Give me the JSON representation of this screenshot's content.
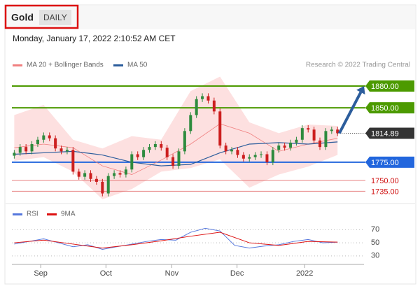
{
  "header": {
    "title": "Gold",
    "timeframe": "DAILY",
    "date": "Monday, January 17, 2022 2:10:52 AM CET",
    "credit": "Research © 2022 Trading Central"
  },
  "chart_data": [
    {
      "type": "candlestick",
      "legend": [
        {
          "name": "MA 20 + Bollinger Bands",
          "color": "#f08080"
        },
        {
          "name": "MA 50",
          "color": "#2c5d9c"
        }
      ],
      "xlim": [
        -0.4,
        59.5
      ],
      "xticks": [
        {
          "value": 4.5,
          "label": "Sep"
        },
        {
          "value": 15.6,
          "label": "Oct"
        },
        {
          "value": 26.8,
          "label": "Nov"
        },
        {
          "value": 37.9,
          "label": "Dec"
        },
        {
          "value": 49.4,
          "label": "2022"
        }
      ],
      "ylim": [
        1719,
        1907
      ],
      "candles": {
        "open": [
          1784,
          1788,
          1796,
          1790,
          1800,
          1806,
          1812,
          1808,
          1794,
          1790,
          1792,
          1762,
          1755,
          1760,
          1752,
          1748,
          1732,
          1756,
          1760,
          1758,
          1765,
          1786,
          1782,
          1792,
          1796,
          1800,
          1795,
          1782,
          1770,
          1790,
          1818,
          1840,
          1862,
          1866,
          1860,
          1845,
          1798,
          1790,
          1792,
          1785,
          1780,
          1782,
          1785,
          1786,
          1775,
          1792,
          1798,
          1795,
          1802,
          1806,
          1822,
          1820,
          1805,
          1796,
          1818,
          1820
        ],
        "high": [
          1792,
          1800,
          1800,
          1804,
          1810,
          1816,
          1816,
          1812,
          1798,
          1796,
          1796,
          1766,
          1764,
          1764,
          1756,
          1752,
          1760,
          1764,
          1764,
          1769,
          1790,
          1790,
          1796,
          1800,
          1804,
          1804,
          1799,
          1786,
          1794,
          1822,
          1844,
          1866,
          1870,
          1870,
          1864,
          1849,
          1802,
          1796,
          1796,
          1789,
          1786,
          1789,
          1790,
          1790,
          1796,
          1802,
          1802,
          1806,
          1810,
          1826,
          1826,
          1824,
          1809,
          1822,
          1824,
          1824
        ],
        "low": [
          1780,
          1784,
          1786,
          1786,
          1796,
          1802,
          1804,
          1790,
          1786,
          1786,
          1758,
          1751,
          1751,
          1748,
          1744,
          1728,
          1728,
          1752,
          1754,
          1754,
          1761,
          1778,
          1778,
          1788,
          1792,
          1791,
          1778,
          1766,
          1766,
          1786,
          1814,
          1836,
          1858,
          1856,
          1841,
          1794,
          1786,
          1786,
          1781,
          1776,
          1776,
          1778,
          1781,
          1771,
          1771,
          1788,
          1791,
          1791,
          1798,
          1802,
          1816,
          1801,
          1792,
          1792,
          1814,
          1811
        ],
        "close": [
          1788,
          1796,
          1790,
          1800,
          1806,
          1812,
          1808,
          1794,
          1790,
          1792,
          1762,
          1755,
          1760,
          1752,
          1748,
          1732,
          1756,
          1760,
          1758,
          1765,
          1786,
          1782,
          1792,
          1796,
          1800,
          1795,
          1782,
          1770,
          1790,
          1818,
          1840,
          1862,
          1866,
          1860,
          1845,
          1798,
          1790,
          1792,
          1785,
          1780,
          1782,
          1785,
          1786,
          1775,
          1792,
          1798,
          1795,
          1802,
          1806,
          1822,
          1820,
          1805,
          1796,
          1818,
          1820,
          1815
        ],
        "up_color": "#2e8b3e",
        "down_color": "#cc1f1f"
      },
      "bands": {
        "x": [
          0,
          5,
          10,
          15,
          20,
          25,
          30,
          35,
          40,
          45,
          50,
          55
        ],
        "upper": [
          1840,
          1854,
          1806,
          1794,
          1811,
          1806,
          1873,
          1893,
          1830,
          1815,
          1827,
          1825
        ],
        "lower": [
          1777,
          1782,
          1762,
          1724,
          1738,
          1762,
          1767,
          1779,
          1740,
          1758,
          1769,
          1785
        ],
        "color": "#fde0e0"
      },
      "series": [
        {
          "name": "MA 20",
          "color": "#f08080",
          "x": [
            0,
            5,
            10,
            15,
            20,
            25,
            30,
            35,
            40,
            45,
            50,
            55
          ],
          "values": [
            1795,
            1800,
            1795,
            1770,
            1758,
            1778,
            1800,
            1828,
            1815,
            1790,
            1800,
            1808
          ]
        },
        {
          "name": "MA 50",
          "color": "#2c5d9c",
          "x": [
            0,
            5,
            10,
            15,
            20,
            25,
            30,
            35,
            40,
            45,
            50,
            55
          ],
          "values": [
            1786,
            1788,
            1790,
            1785,
            1775,
            1770,
            1772,
            1788,
            1800,
            1802,
            1800,
            1803
          ]
        }
      ],
      "levels": [
        {
          "value": 1880,
          "label": "1880.00",
          "color": "#4c9a00",
          "style": "box"
        },
        {
          "value": 1850,
          "label": "1850.00",
          "color": "#4c9a00",
          "style": "box"
        },
        {
          "value": 1775,
          "label": "1775.00",
          "color": "#2266dd",
          "style": "box"
        },
        {
          "value": 1750,
          "label": "1750.00",
          "color": "#e06060",
          "style": "text"
        },
        {
          "value": 1735,
          "label": "1735.00",
          "color": "#e06060",
          "style": "text"
        }
      ],
      "last": 1814.89,
      "arrow": {
        "x": [
          55.3,
          59.5
        ],
        "y": [
          1814.89,
          1880
        ],
        "color": "#2c5d9c"
      }
    },
    {
      "type": "line",
      "ylim": [
        17,
        81
      ],
      "yticks": [
        70,
        50,
        30
      ],
      "series": [
        {
          "name": "RSI",
          "color": "#5577dd",
          "x": [
            0,
            2.5,
            5,
            7.5,
            10,
            12.5,
            15,
            17.5,
            20,
            22.5,
            25,
            27.5,
            30,
            32.5,
            35,
            37.5,
            40,
            42.5,
            45,
            47.5,
            50,
            52.5,
            55
          ],
          "values": [
            48,
            52,
            56,
            50,
            44,
            47,
            40,
            44,
            48,
            52,
            55,
            54,
            66,
            72,
            68,
            46,
            42,
            45,
            47,
            52,
            55,
            50,
            51
          ]
        },
        {
          "name": "9MA",
          "color": "#dd1111",
          "x": [
            0,
            5,
            10,
            15,
            20,
            25,
            30,
            35,
            40,
            45,
            50,
            55
          ],
          "values": [
            50,
            54,
            48,
            42,
            47,
            53,
            60,
            66,
            50,
            46,
            52,
            51
          ]
        }
      ]
    }
  ]
}
